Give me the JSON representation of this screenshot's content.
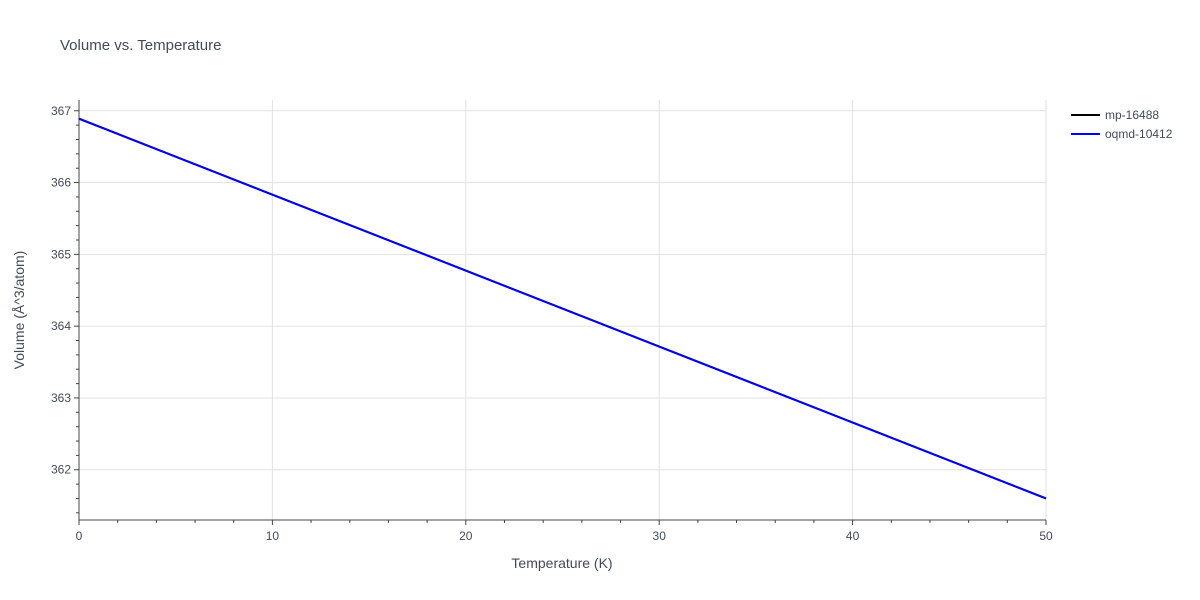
{
  "chart_data": {
    "type": "line",
    "title": "Volume vs. Temperature",
    "xlabel": "Temperature (K)",
    "ylabel": "Volume (Å^3/atom)",
    "xlim": [
      0,
      50
    ],
    "ylim": [
      361.3,
      367.15
    ],
    "xticks": [
      0,
      10,
      20,
      30,
      40,
      50
    ],
    "yticks": [
      362,
      363,
      364,
      365,
      366,
      367
    ],
    "grid": true,
    "legend_position": "top-right",
    "series": [
      {
        "name": "mp-16488",
        "color": "#000000",
        "x": [
          0,
          50
        ],
        "y": [
          366.89,
          361.6
        ]
      },
      {
        "name": "oqmd-10412",
        "color": "#0000ff",
        "x": [
          0,
          50
        ],
        "y": [
          366.89,
          361.6
        ]
      }
    ]
  }
}
